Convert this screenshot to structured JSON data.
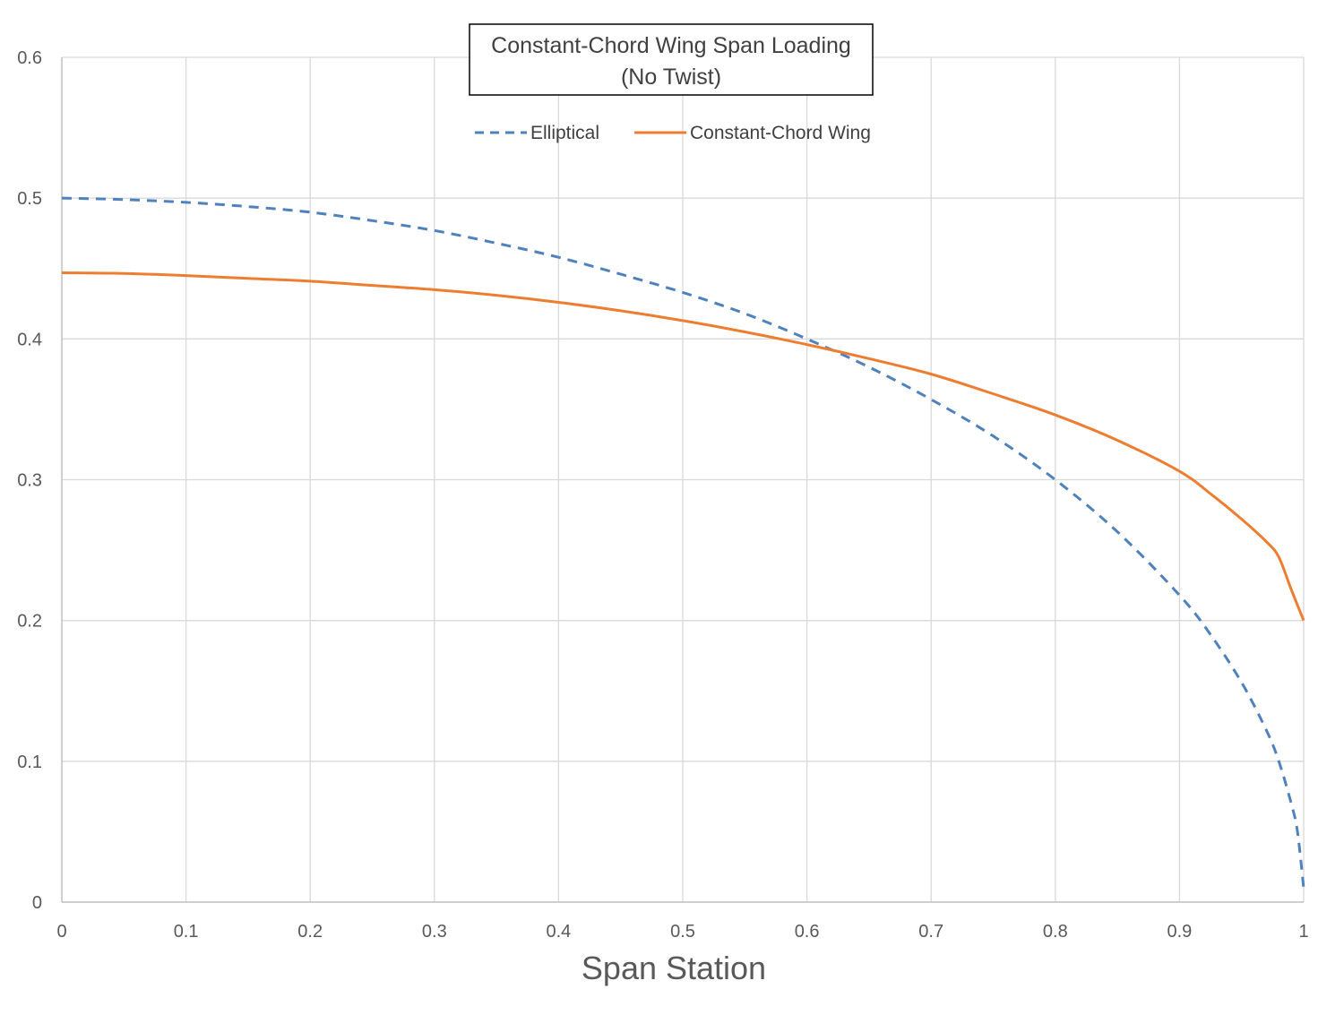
{
  "chart_data": {
    "type": "line",
    "title": "Constant-Chord Wing Span Loading",
    "subtitle": "(No Twist)",
    "xlabel": "Span Station",
    "ylabel": "",
    "xlim": [
      0,
      1
    ],
    "ylim": [
      0,
      0.6
    ],
    "x_ticks": [
      "0",
      "0.1",
      "0.2",
      "0.3",
      "0.4",
      "0.5",
      "0.6",
      "0.7",
      "0.8",
      "0.9",
      "1"
    ],
    "y_ticks": [
      "0",
      "0.1",
      "0.2",
      "0.3",
      "0.4",
      "0.5",
      "0.6"
    ],
    "grid": true,
    "legend_position": "top-center",
    "series": [
      {
        "name": "Elliptical",
        "style": "dashed",
        "color": "#4F81BD",
        "x": [
          0,
          0.05,
          0.1,
          0.15,
          0.2,
          0.25,
          0.3,
          0.35,
          0.4,
          0.45,
          0.5,
          0.55,
          0.6,
          0.65,
          0.7,
          0.75,
          0.8,
          0.85,
          0.9,
          0.925,
          0.95,
          0.97,
          0.98,
          0.99,
          0.995,
          1
        ],
        "y": [
          0.5,
          0.499,
          0.497,
          0.494,
          0.49,
          0.484,
          0.477,
          0.468,
          0.458,
          0.446,
          0.433,
          0.418,
          0.4,
          0.38,
          0.357,
          0.331,
          0.3,
          0.263,
          0.218,
          0.19,
          0.156,
          0.122,
          0.1,
          0.07,
          0.05,
          0.01
        ]
      },
      {
        "name": "Constant-Chord Wing",
        "style": "solid",
        "color": "#ED7D31",
        "x": [
          0,
          0.05,
          0.1,
          0.15,
          0.2,
          0.25,
          0.3,
          0.35,
          0.4,
          0.45,
          0.5,
          0.55,
          0.6,
          0.65,
          0.7,
          0.75,
          0.8,
          0.85,
          0.9,
          0.925,
          0.95,
          0.97,
          0.98,
          0.99,
          1
        ],
        "y": [
          0.447,
          0.4465,
          0.445,
          0.443,
          0.441,
          0.438,
          0.435,
          0.431,
          0.426,
          0.42,
          0.413,
          0.405,
          0.396,
          0.386,
          0.375,
          0.361,
          0.346,
          0.328,
          0.306,
          0.29,
          0.272,
          0.256,
          0.245,
          0.222,
          0.2
        ]
      }
    ]
  }
}
